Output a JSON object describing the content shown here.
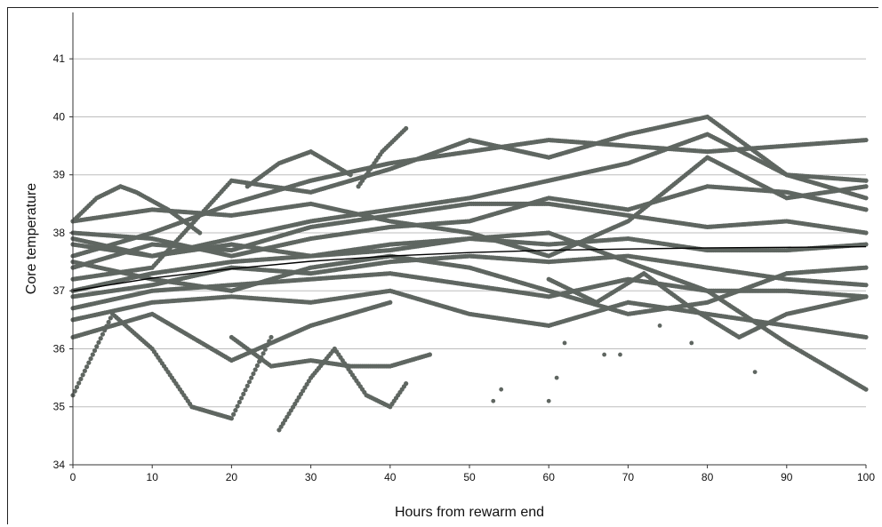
{
  "chart_data": {
    "type": "scatter",
    "title": "",
    "xlabel": "Hours from rewarm end",
    "ylabel": "Core temperature",
    "xlim": [
      0,
      100
    ],
    "ylim": [
      34,
      41.8
    ],
    "xticks": [
      0,
      10,
      20,
      30,
      40,
      50,
      60,
      70,
      80,
      90,
      100
    ],
    "yticks": [
      34,
      35,
      36,
      37,
      38,
      39,
      40,
      41
    ],
    "grid": "horizontal",
    "legend": "none",
    "colors": {
      "points": "#5f6661",
      "fit_line": "#000000",
      "grid": "#bdbdbd",
      "axis": "#333333"
    },
    "fit_line": {
      "x": [
        0,
        10,
        20,
        30,
        40,
        50,
        60,
        70,
        80,
        90,
        100
      ],
      "y": [
        37.0,
        37.22,
        37.38,
        37.51,
        37.6,
        37.66,
        37.7,
        37.72,
        37.74,
        37.75,
        37.76
      ]
    },
    "series": [
      {
        "x": [
          0,
          10,
          20,
          30,
          40,
          50,
          60,
          70,
          80,
          90,
          100
        ],
        "y": [
          37.6,
          38.0,
          38.5,
          38.9,
          39.2,
          39.4,
          39.6,
          39.5,
          39.4,
          39.5,
          39.6
        ]
      },
      {
        "x": [
          0,
          10,
          20,
          30,
          40,
          50,
          60,
          70,
          80,
          90,
          100
        ],
        "y": [
          37.2,
          37.4,
          38.9,
          38.7,
          39.1,
          39.6,
          39.3,
          39.7,
          40.0,
          39.0,
          38.9
        ]
      },
      {
        "x": [
          0,
          10,
          20,
          30,
          40,
          50,
          60,
          70,
          80,
          90,
          100
        ],
        "y": [
          37.8,
          37.6,
          37.9,
          38.2,
          38.4,
          38.6,
          38.9,
          39.2,
          39.7,
          39.0,
          38.6
        ]
      },
      {
        "x": [
          0,
          10,
          20,
          30,
          40,
          50,
          60,
          70,
          80,
          90,
          100
        ],
        "y": [
          37.4,
          37.8,
          37.7,
          38.1,
          38.3,
          38.5,
          38.5,
          38.3,
          38.1,
          38.2,
          38.0
        ]
      },
      {
        "x": [
          0,
          10,
          20,
          30,
          40,
          50,
          60,
          70,
          80,
          90,
          100
        ],
        "y": [
          37.0,
          37.3,
          37.5,
          37.6,
          37.8,
          37.9,
          37.8,
          37.9,
          37.7,
          37.7,
          37.8
        ]
      },
      {
        "x": [
          0,
          10,
          20,
          30,
          40,
          50,
          60,
          70,
          80,
          90,
          100
        ],
        "y": [
          36.9,
          37.1,
          37.4,
          37.3,
          37.5,
          37.6,
          37.5,
          37.6,
          37.4,
          37.2,
          37.1
        ]
      },
      {
        "x": [
          0,
          10,
          20,
          30,
          40,
          50,
          60,
          70,
          80,
          90,
          100
        ],
        "y": [
          36.7,
          37.0,
          37.1,
          37.2,
          37.3,
          37.1,
          36.9,
          37.2,
          37.0,
          37.0,
          36.9
        ]
      },
      {
        "x": [
          0,
          10,
          20,
          30,
          40,
          50,
          60,
          70,
          80,
          90,
          100
        ],
        "y": [
          36.5,
          36.8,
          36.9,
          36.8,
          37.0,
          36.6,
          36.4,
          36.8,
          36.6,
          36.4,
          36.2
        ]
      },
      {
        "x": [
          0,
          10,
          20,
          30,
          40,
          50,
          60,
          70,
          80,
          90,
          100
        ],
        "y": [
          37.9,
          37.6,
          37.8,
          37.6,
          37.7,
          37.9,
          38.0,
          37.5,
          37.0,
          36.1,
          35.3
        ]
      },
      {
        "x": [
          0,
          10,
          20,
          30,
          40,
          50,
          60,
          70,
          80,
          90,
          100
        ],
        "y": [
          38.2,
          38.4,
          38.3,
          38.5,
          38.2,
          38.0,
          37.6,
          38.2,
          39.3,
          38.6,
          38.8
        ]
      },
      {
        "x": [
          0,
          10,
          20,
          30,
          40,
          50,
          60,
          70,
          80,
          90,
          100
        ],
        "y": [
          37.5,
          37.2,
          37.0,
          37.4,
          37.6,
          37.4,
          37.0,
          36.6,
          36.8,
          37.3,
          37.4
        ]
      },
      {
        "x": [
          0,
          10,
          20,
          30,
          40,
          50,
          60,
          70,
          80,
          90,
          100
        ],
        "y": [
          38.0,
          37.9,
          37.6,
          37.9,
          38.1,
          38.2,
          38.6,
          38.4,
          38.8,
          38.7,
          38.4
        ]
      },
      {
        "x": [
          0,
          10,
          20,
          30,
          40
        ],
        "y": [
          36.2,
          36.6,
          35.8,
          36.4,
          36.8
        ]
      },
      {
        "x": [
          0,
          5,
          10,
          15,
          20,
          25
        ],
        "y": [
          35.2,
          36.6,
          36.0,
          35.0,
          34.8,
          36.2
        ]
      },
      {
        "x": [
          20,
          25,
          30,
          35,
          40,
          45
        ],
        "y": [
          36.2,
          35.7,
          35.8,
          35.7,
          35.7,
          35.9
        ]
      },
      {
        "x": [
          26,
          30,
          33,
          37,
          40,
          42
        ],
        "y": [
          34.6,
          35.5,
          36.0,
          35.2,
          35.0,
          35.4
        ]
      },
      {
        "x": [
          0,
          3,
          6,
          8,
          12,
          16
        ],
        "y": [
          38.2,
          38.6,
          38.8,
          38.7,
          38.4,
          38.0
        ]
      },
      {
        "x": [
          22,
          26,
          30,
          35
        ],
        "y": [
          38.8,
          39.2,
          39.4,
          39.0
        ]
      },
      {
        "x": [
          36,
          39,
          42
        ],
        "y": [
          38.8,
          39.4,
          39.8
        ]
      },
      {
        "x": [
          60,
          66,
          72,
          78,
          84,
          90,
          100
        ],
        "y": [
          37.2,
          36.8,
          37.3,
          36.7,
          36.2,
          36.6,
          36.9
        ]
      }
    ],
    "outliers": {
      "x": [
        53,
        54,
        60,
        61,
        62,
        67,
        69,
        74,
        78,
        86
      ],
      "y": [
        35.1,
        35.3,
        35.1,
        35.5,
        36.1,
        35.9,
        35.9,
        36.4,
        36.1,
        35.6
      ]
    }
  }
}
